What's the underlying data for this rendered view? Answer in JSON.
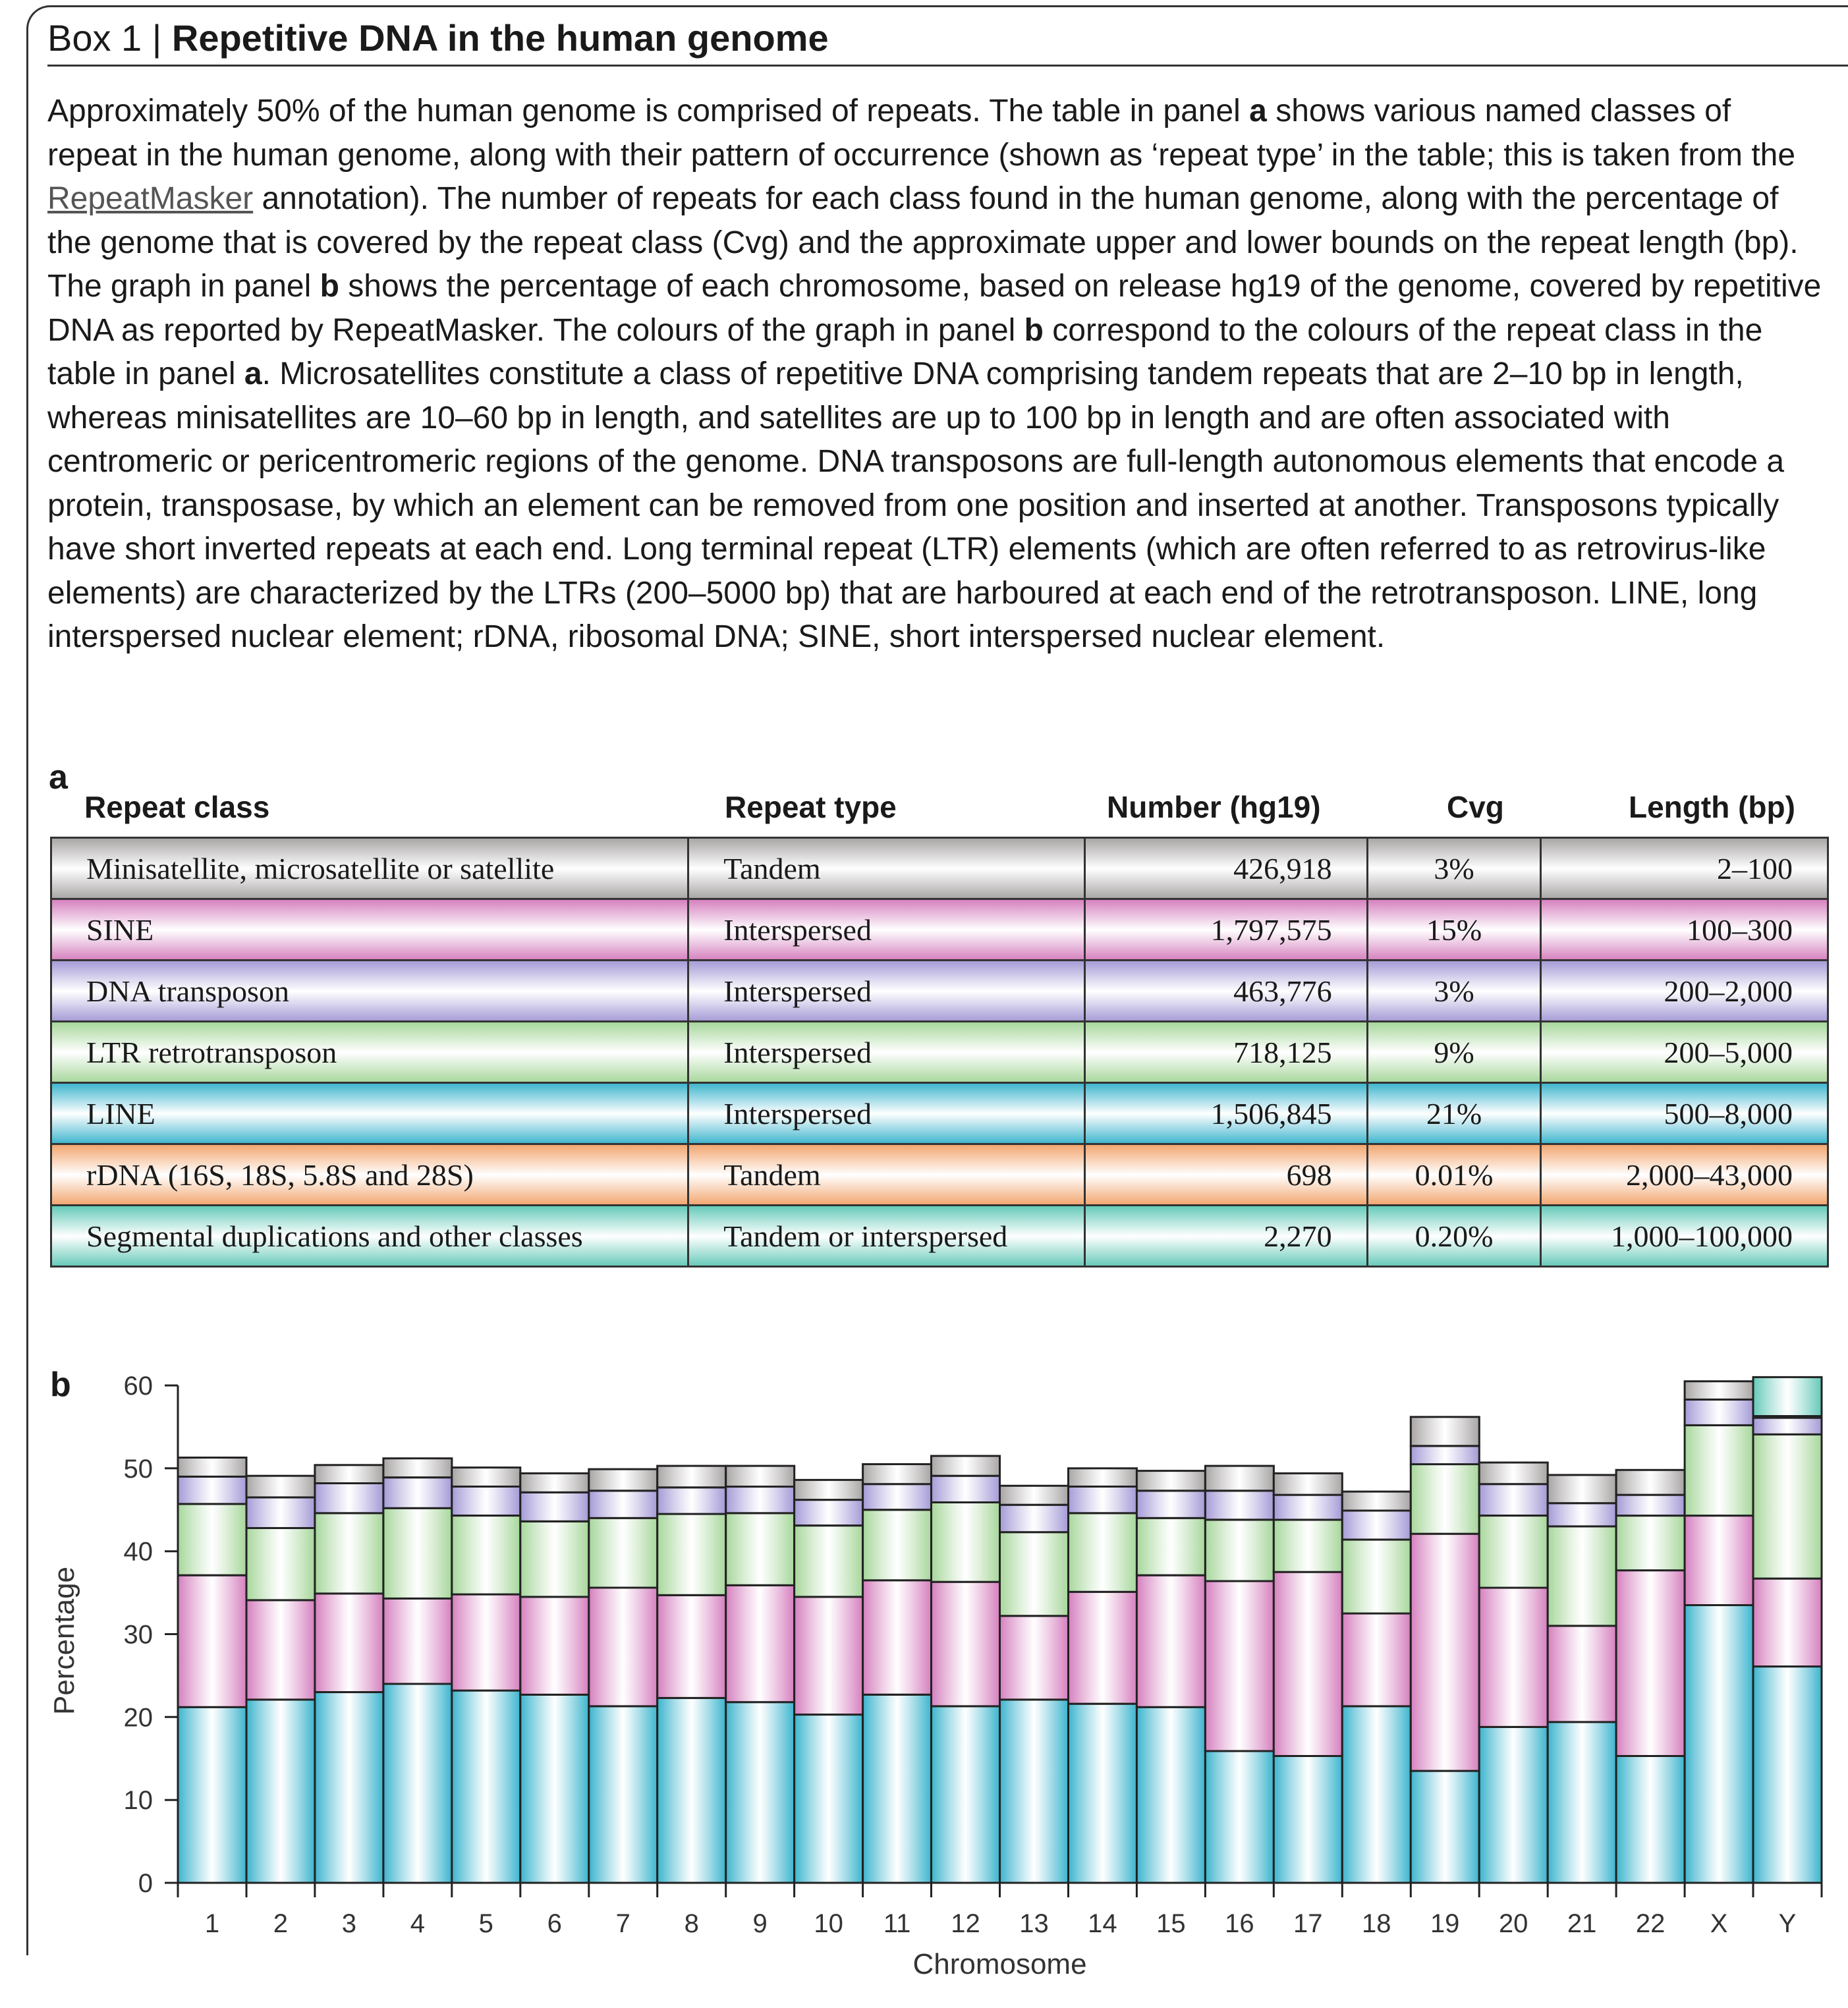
{
  "box": {
    "label": "Box 1 | ",
    "title": "Repetitive DNA in the human genome"
  },
  "intro": {
    "p1": "Approximately 50% of the human genome is comprised of repeats. The table in panel ",
    "a1": "a",
    "p2": " shows various named classes of repeat in the human genome, along with their pattern of occurrence (shown as ‘repeat type’ in the table; this is taken from the ",
    "link": "RepeatMasker",
    "p3": " annotation). The number of repeats for each class found in the human genome, along with the percentage of the genome that is covered by the repeat class (Cvg) and the approximate upper and lower bounds on the repeat length (bp). The graph in panel ",
    "b1": "b",
    "p4": " shows the percentage of each chromosome, based on release hg19 of the genome, covered by repetitive DNA as reported by RepeatMasker. The colours of the graph in panel ",
    "b2": "b",
    "p5": " correspond to the colours of the repeat class in the table in panel ",
    "a2": "a",
    "p6": ". Microsatellites constitute a class of repetitive DNA comprising tandem repeats that are 2–10 bp in length, whereas minisatellites are 10–60 bp in length, and satellites are up to 100 bp in length and are often associated with centromeric or pericentromeric regions of the genome. DNA transposons are full-length autonomous elements that encode a protein, transposase, by which an element can be removed from one position and inserted at another. Transposons typically have short inverted repeats at each end. Long terminal repeat (LTR) elements (which are often referred to as retrovirus-like elements) are characterized by the LTRs (200–5000 bp) that are harboured at each end of the retrotransposon. LINE, long interspersed nuclear element; rDNA, ribosomal DNA; SINE, short interspersed nuclear element."
  },
  "panels": {
    "a": "a",
    "b": "b"
  },
  "table": {
    "headers": {
      "cls": "Repeat class",
      "type": "Repeat type",
      "num": "Number (hg19)",
      "cvg": "Cvg",
      "len": "Length (bp)"
    },
    "rows": [
      {
        "cls": "Minisatellite, microsatellite or satellite",
        "type": "Tandem",
        "num": "426,918",
        "cvg": "3%",
        "len": "2–100",
        "color": "#a8a4a4"
      },
      {
        "cls": "SINE",
        "type": "Interspersed",
        "num": "1,797,575",
        "cvg": "15%",
        "len": "100–300",
        "color": "#d57fbe"
      },
      {
        "cls": "DNA transposon",
        "type": "Interspersed",
        "num": "463,776",
        "cvg": "3%",
        "len": "200–2,000",
        "color": "#a49ad6"
      },
      {
        "cls": "LTR retrotransposon",
        "type": "Interspersed",
        "num": "718,125",
        "cvg": "9%",
        "len": "200–5,000",
        "color": "#a6d69a"
      },
      {
        "cls": "LINE",
        "type": "Interspersed",
        "num": "1,506,845",
        "cvg": "21%",
        "len": "500–8,000",
        "color": "#3bb4cd"
      },
      {
        "cls": "rDNA (16S, 18S, 5.8S and 28S)",
        "type": "Tandem",
        "num": "698",
        "cvg": "0.01%",
        "len": "2,000–43,000",
        "color": "#f2a46c"
      },
      {
        "cls": "Segmental duplications and other classes",
        "type": "Tandem or interspersed",
        "num": "2,270",
        "cvg": "0.20%",
        "len": "1,000–100,000",
        "color": "#63c9b8"
      }
    ]
  },
  "chart_data": {
    "type": "bar",
    "stacked": true,
    "xlabel": "Chromosome",
    "ylabel": "Percentage",
    "ylim": [
      0,
      60
    ],
    "yticks": [
      0,
      10,
      20,
      30,
      40,
      50,
      60
    ],
    "categories": [
      "1",
      "2",
      "3",
      "4",
      "5",
      "6",
      "7",
      "8",
      "9",
      "10",
      "11",
      "12",
      "13",
      "14",
      "15",
      "16",
      "17",
      "18",
      "19",
      "20",
      "21",
      "22",
      "X",
      "Y"
    ],
    "series": [
      {
        "name": "LINE",
        "color": "#3bb4cd",
        "values": [
          21.2,
          22.1,
          23.0,
          24.0,
          23.2,
          22.7,
          21.3,
          22.3,
          21.8,
          20.3,
          22.7,
          21.3,
          22.1,
          21.6,
          21.2,
          15.9,
          15.3,
          21.3,
          13.5,
          18.8,
          19.4,
          15.3,
          33.5,
          26.1
        ]
      },
      {
        "name": "SINE",
        "color": "#d57fbe",
        "values": [
          15.9,
          12.0,
          11.9,
          10.3,
          11.6,
          11.8,
          14.3,
          12.4,
          14.1,
          14.2,
          13.8,
          15.0,
          10.1,
          13.5,
          15.9,
          20.5,
          22.2,
          11.2,
          28.6,
          16.8,
          11.6,
          22.4,
          10.8,
          10.6
        ]
      },
      {
        "name": "LTR retrotransposon",
        "color": "#a6d69a",
        "values": [
          8.6,
          8.7,
          9.7,
          10.9,
          9.5,
          9.1,
          8.4,
          9.8,
          8.7,
          8.6,
          8.5,
          9.6,
          10.1,
          9.5,
          6.9,
          7.4,
          6.3,
          8.9,
          8.4,
          8.7,
          12.0,
          6.6,
          10.9,
          17.4
        ]
      },
      {
        "name": "DNA transposon",
        "color": "#a49ad6",
        "values": [
          3.3,
          3.7,
          3.6,
          3.7,
          3.5,
          3.5,
          3.3,
          3.2,
          3.2,
          3.1,
          3.1,
          3.2,
          3.3,
          3.2,
          3.3,
          3.5,
          3.0,
          3.5,
          2.2,
          3.8,
          2.8,
          2.5,
          3.1,
          2.0
        ]
      },
      {
        "name": "Minisatellite, microsatellite or satellite",
        "color": "#a8a4a4",
        "values": [
          2.3,
          2.6,
          2.2,
          2.3,
          2.3,
          2.3,
          2.6,
          2.6,
          2.5,
          2.4,
          2.4,
          2.4,
          2.3,
          2.2,
          2.4,
          3.0,
          2.6,
          2.3,
          3.5,
          2.6,
          3.4,
          3.0,
          2.2,
          0.2
        ]
      },
      {
        "name": "Segmental duplications and other classes",
        "color": "#63c9b8",
        "values": [
          0,
          0,
          0,
          0,
          0,
          0,
          0,
          0,
          0,
          0,
          0,
          0,
          0,
          0,
          0,
          0,
          0,
          0,
          0,
          0,
          0,
          0,
          0,
          4.7
        ]
      }
    ]
  }
}
